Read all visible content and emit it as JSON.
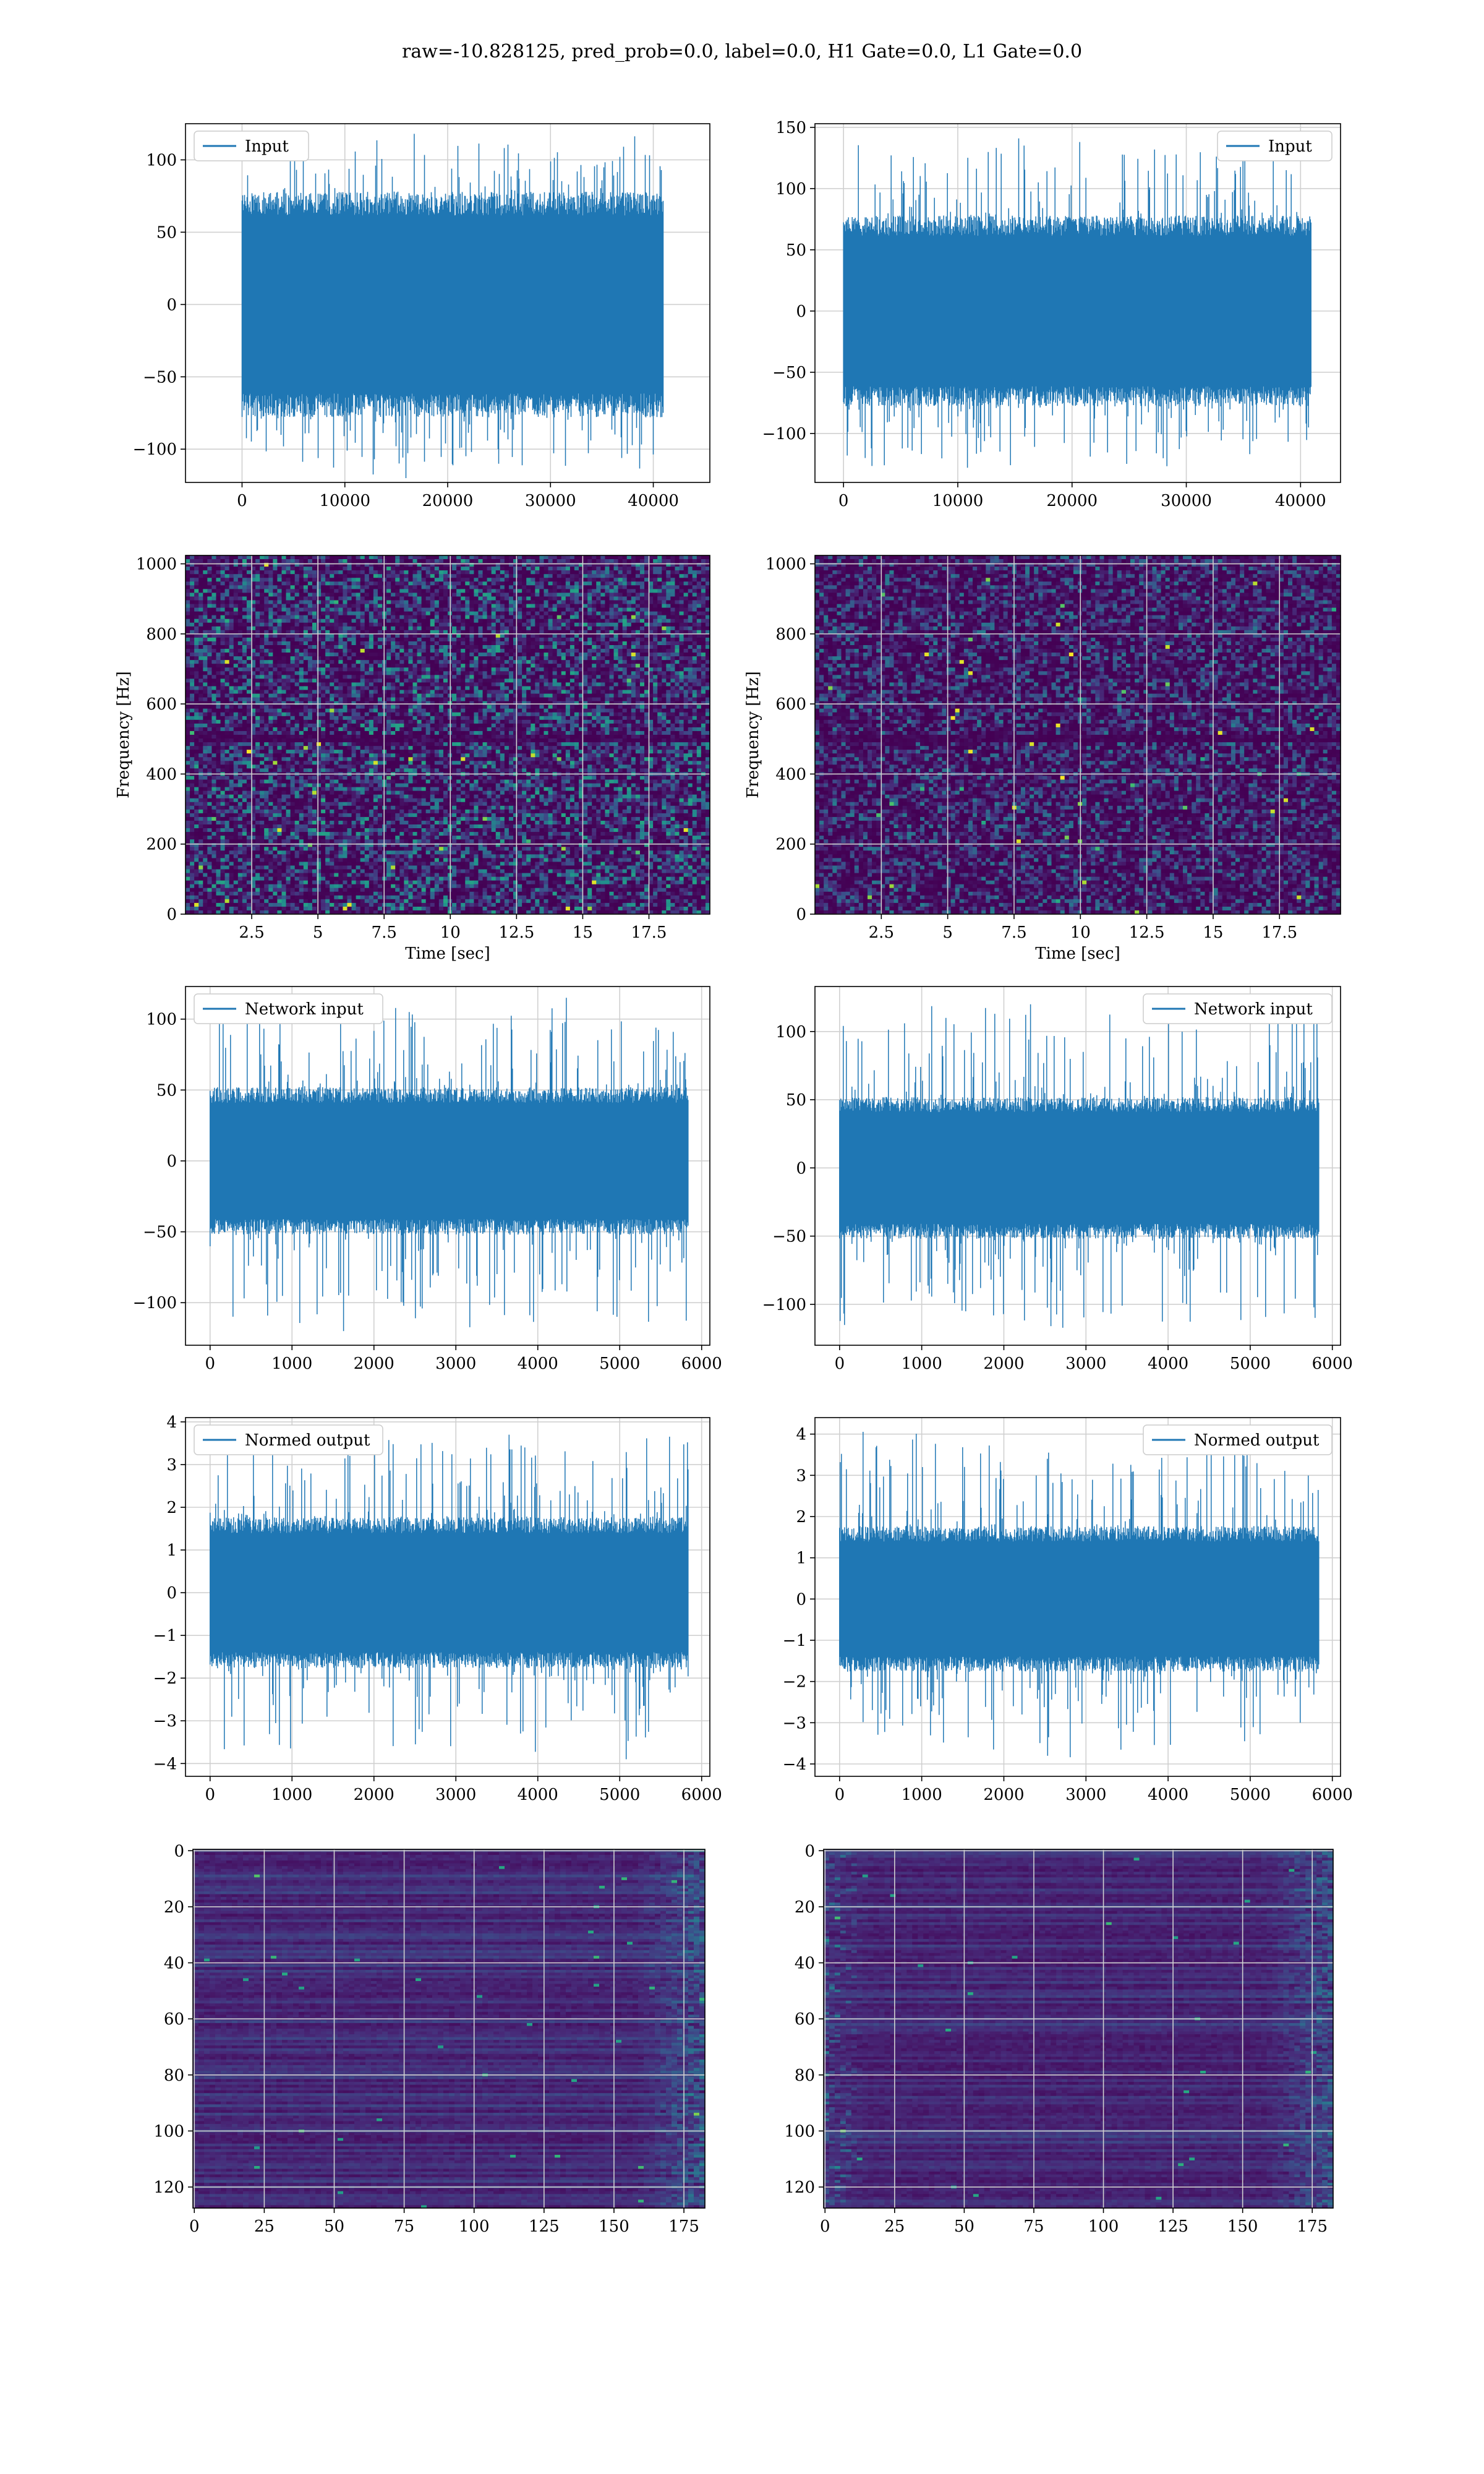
{
  "figure": {
    "title": "raw=-10.828125, pred_prob=0.0, label=0.0, H1 Gate=0.0, L1 Gate=0.0",
    "colors": {
      "line": "#1f77b4",
      "grid": "#d0d0d0",
      "axes": "#000000"
    }
  },
  "chart_data": [
    {
      "id": "input-h1",
      "type": "line",
      "series": [
        {
          "name": "Input"
        }
      ],
      "legend": "upper-left",
      "grid": true,
      "xlim": [
        -5500,
        45500
      ],
      "ylim": [
        -123,
        125
      ],
      "xticks": [
        0,
        10000,
        20000,
        30000,
        40000
      ],
      "yticks": [
        -100,
        -50,
        0,
        50,
        100
      ],
      "n_samples": 40960,
      "envelope": [
        -75,
        75
      ],
      "spike_max": 118,
      "spike_min": -120
    },
    {
      "id": "input-l1",
      "type": "line",
      "series": [
        {
          "name": "Input"
        }
      ],
      "legend": "upper-right",
      "grid": true,
      "xlim": [
        -2500,
        43500
      ],
      "ylim": [
        -140,
        153
      ],
      "xticks": [
        0,
        10000,
        20000,
        30000,
        40000
      ],
      "yticks": [
        -100,
        -50,
        0,
        50,
        100,
        150
      ],
      "n_samples": 40960,
      "envelope": [
        -75,
        75
      ],
      "spike_max": 141,
      "spike_min": -128
    },
    {
      "id": "spec-h1",
      "type": "heatmap",
      "cmap": "viridis",
      "grid": true,
      "xlabel": "Time [sec]",
      "ylabel": "Frequency [Hz]",
      "xlim": [
        0,
        19.8
      ],
      "ylim": [
        0,
        1024
      ],
      "xticks": [
        2.5,
        5.0,
        7.5,
        10.0,
        12.5,
        15.0,
        17.5
      ],
      "yticks": [
        0,
        200,
        400,
        600,
        800,
        1000
      ],
      "line_hz": [
        500
      ],
      "intensity": 0.35
    },
    {
      "id": "spec-l1",
      "type": "heatmap",
      "cmap": "viridis",
      "grid": true,
      "xlabel": "Time [sec]",
      "ylabel": "Frequency [Hz]",
      "xlim": [
        0,
        19.8
      ],
      "ylim": [
        0,
        1024
      ],
      "xticks": [
        2.5,
        5.0,
        7.5,
        10.0,
        12.5,
        15.0,
        17.5
      ],
      "yticks": [
        0,
        200,
        400,
        600,
        800,
        1000
      ],
      "line_hz": [
        500
      ],
      "intensity": 0.25
    },
    {
      "id": "net-h1",
      "type": "line",
      "series": [
        {
          "name": "Network input"
        }
      ],
      "legend": "upper-left",
      "grid": true,
      "xlim": [
        -300,
        6100
      ],
      "ylim": [
        -130,
        123
      ],
      "xticks": [
        0,
        1000,
        2000,
        3000,
        4000,
        5000,
        6000
      ],
      "yticks": [
        -100,
        -50,
        0,
        50,
        100
      ],
      "n_samples": 5840,
      "envelope": [
        -50,
        50
      ],
      "spike_max": 115,
      "spike_min": -120
    },
    {
      "id": "net-l1",
      "type": "line",
      "series": [
        {
          "name": "Network input"
        }
      ],
      "legend": "upper-right",
      "grid": true,
      "xlim": [
        -300,
        6100
      ],
      "ylim": [
        -130,
        133
      ],
      "xticks": [
        0,
        1000,
        2000,
        3000,
        4000,
        5000,
        6000
      ],
      "yticks": [
        -100,
        -50,
        0,
        50,
        100
      ],
      "n_samples": 5840,
      "envelope": [
        -50,
        50
      ],
      "spike_max": 120,
      "spike_min": -116
    },
    {
      "id": "norm-h1",
      "type": "line",
      "series": [
        {
          "name": "Normed output"
        }
      ],
      "legend": "upper-left",
      "grid": true,
      "xlim": [
        -300,
        6100
      ],
      "ylim": [
        -4.3,
        4.1
      ],
      "xticks": [
        0,
        1000,
        2000,
        3000,
        4000,
        5000,
        6000
      ],
      "yticks": [
        -4,
        -3,
        -2,
        -1,
        0,
        1,
        2,
        3,
        4
      ],
      "n_samples": 5840,
      "envelope": [
        -1.7,
        1.7
      ],
      "spike_max": 3.7,
      "spike_min": -3.9
    },
    {
      "id": "norm-l1",
      "type": "line",
      "series": [
        {
          "name": "Normed output"
        }
      ],
      "legend": "upper-right",
      "grid": true,
      "xlim": [
        -300,
        6100
      ],
      "ylim": [
        -4.3,
        4.4
      ],
      "xticks": [
        0,
        1000,
        2000,
        3000,
        4000,
        5000,
        6000
      ],
      "yticks": [
        -4,
        -3,
        -2,
        -1,
        0,
        1,
        2,
        3,
        4
      ],
      "n_samples": 5840,
      "envelope": [
        -1.7,
        1.7
      ],
      "spike_max": 4.0,
      "spike_min": -3.8
    },
    {
      "id": "feat-h1",
      "type": "heatmap",
      "cmap": "viridis",
      "grid": true,
      "xlim": [
        -0.5,
        182.5
      ],
      "ylim": [
        -0.5,
        127.5
      ],
      "y_inverted": true,
      "xticks": [
        0,
        25,
        50,
        75,
        100,
        125,
        150,
        175
      ],
      "yticks": [
        0,
        20,
        40,
        60,
        80,
        100,
        120
      ],
      "n_cols": 183,
      "n_rows": 128,
      "hot_side": "right"
    },
    {
      "id": "feat-l1",
      "type": "heatmap",
      "cmap": "viridis",
      "grid": true,
      "xlim": [
        -0.5,
        182.5
      ],
      "ylim": [
        -0.5,
        127.5
      ],
      "y_inverted": true,
      "xticks": [
        0,
        25,
        50,
        75,
        100,
        125,
        150,
        175
      ],
      "yticks": [
        0,
        20,
        40,
        60,
        80,
        100,
        120
      ],
      "n_cols": 183,
      "n_rows": 128,
      "hot_side": "both"
    }
  ]
}
